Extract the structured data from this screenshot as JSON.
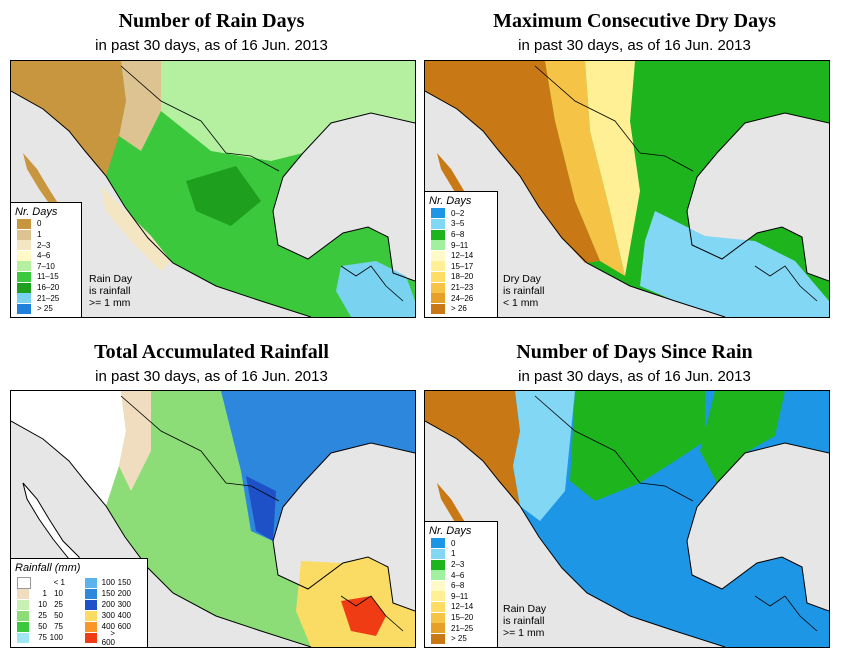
{
  "panels": [
    {
      "title": "Number of Rain Days",
      "subtitle": "in past 30 days, as of  16 Jun. 2013",
      "legend_title": "Nr. Days",
      "legend": [
        {
          "label": "0",
          "color": "#c8963e"
        },
        {
          "label": "1",
          "color": "#dcc391"
        },
        {
          "label": "2–3",
          "color": "#f5e6c3"
        },
        {
          "label": "4–6",
          "color": "#fffac8"
        },
        {
          "label": "7–10",
          "color": "#b4f0a0"
        },
        {
          "label": "11–15",
          "color": "#3cc83c"
        },
        {
          "label": "16–20",
          "color": "#1ea01e"
        },
        {
          "label": "21–25",
          "color": "#78d2f0"
        },
        {
          "label": "> 25",
          "color": "#1e82dc"
        }
      ],
      "note": [
        "Rain Day",
        "is rainfall",
        ">= 1 mm"
      ]
    },
    {
      "title": "Maximum Consecutive Dry Days",
      "subtitle": "in past 30 days, as of  16 Jun. 2013",
      "legend_title": "Nr. Days",
      "legend": [
        {
          "label": "0–2",
          "color": "#1e96e6"
        },
        {
          "label": "3–5",
          "color": "#82d7f5"
        },
        {
          "label": "6–8",
          "color": "#1eb41e"
        },
        {
          "label": "9–11",
          "color": "#a0f0a0"
        },
        {
          "label": "12–14",
          "color": "#fffac8"
        },
        {
          "label": "15–17",
          "color": "#fff096"
        },
        {
          "label": "18–20",
          "color": "#ffdc64"
        },
        {
          "label": "21–23",
          "color": "#f5c346"
        },
        {
          "label": "24–26",
          "color": "#e6a028"
        },
        {
          "label": "> 26",
          "color": "#c87814"
        }
      ],
      "note": [
        "Dry Day",
        "is rainfall",
        "< 1 mm"
      ]
    },
    {
      "title": "Total Accumulated Rainfall",
      "subtitle": "in past 30 days, as of  16 Jun. 2013",
      "legend_title": "Rainfall (mm)",
      "legend_left": [
        {
          "lo": "",
          "hi": "< 1",
          "color": "#ffffff"
        },
        {
          "lo": "1",
          "hi": "10",
          "color": "#f0dcbe"
        },
        {
          "lo": "10",
          "hi": "25",
          "color": "#c8f0b4"
        },
        {
          "lo": "25",
          "hi": "50",
          "color": "#8cdc78"
        },
        {
          "lo": "50",
          "hi": "75",
          "color": "#3cc83c"
        },
        {
          "lo": "75",
          "hi": "100",
          "color": "#a0e6f5"
        }
      ],
      "legend_right": [
        {
          "lo": "100",
          "hi": "150",
          "color": "#5ab4eb"
        },
        {
          "lo": "150",
          "hi": "200",
          "color": "#2d87dc"
        },
        {
          "lo": "200",
          "hi": "300",
          "color": "#1e50c8"
        },
        {
          "lo": "300",
          "hi": "400",
          "color": "#fadc64"
        },
        {
          "lo": "400",
          "hi": "600",
          "color": "#fa9628"
        },
        {
          "lo": "> 600",
          "hi": "",
          "color": "#f03c14"
        }
      ]
    },
    {
      "title": "Number of Days Since Rain",
      "subtitle": "in past 30 days, as of  16 Jun. 2013",
      "legend_title": "Nr. Days",
      "legend": [
        {
          "label": "0",
          "color": "#1e96e6"
        },
        {
          "label": "1",
          "color": "#82d7f5"
        },
        {
          "label": "2–3",
          "color": "#1eb41e"
        },
        {
          "label": "4–6",
          "color": "#a0f0a0"
        },
        {
          "label": "6–8",
          "color": "#fffac8"
        },
        {
          "label": "9–11",
          "color": "#fff096"
        },
        {
          "label": "12–14",
          "color": "#ffdc64"
        },
        {
          "label": "15–20",
          "color": "#f5c346"
        },
        {
          "label": "21–25",
          "color": "#e6a028"
        },
        {
          "label": "> 25",
          "color": "#c87814"
        }
      ],
      "note": [
        "Rain Day",
        "is rainfall",
        ">= 1 mm"
      ]
    }
  ],
  "colors": {
    "ocean": "#e6e6e6",
    "border": "#000000"
  }
}
